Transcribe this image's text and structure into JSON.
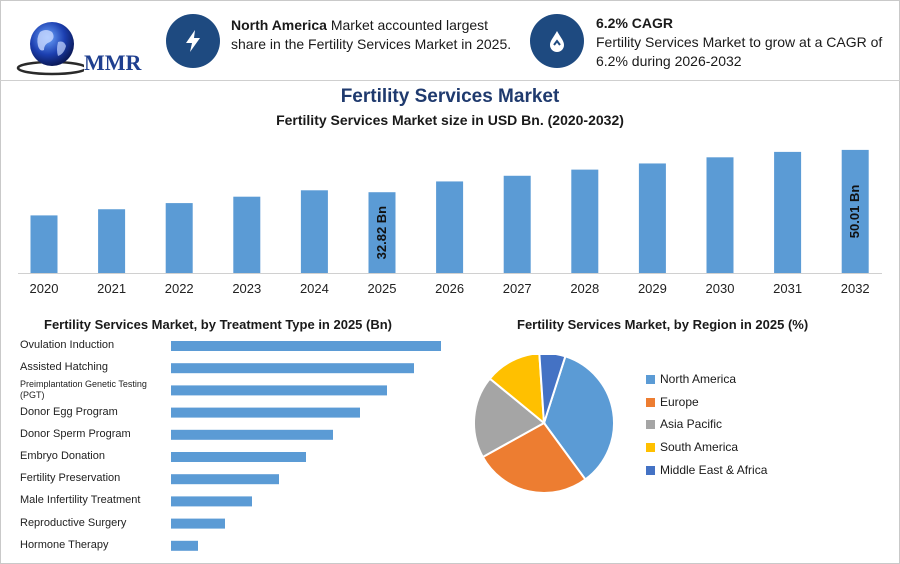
{
  "header": {
    "logo_text": "MMR",
    "info1": {
      "bold": "North America",
      "text": " Market accounted largest share in the Fertility Services Market in 2025."
    },
    "info2": {
      "bold": "6.2% CAGR",
      "text": "Fertility Services Market to grow at a CAGR of 6.2% during 2026-2032"
    }
  },
  "titles": {
    "main": "Fertility Services Market",
    "sub": "Fertility Services Market size in USD Bn. (2020-2032)",
    "treatment": "Fertility Services Market, by Treatment Type in 2025 (Bn)",
    "region": "Fertility Services Market, by Region in 2025 (%)"
  },
  "colors": {
    "bar": "#5b9bd5",
    "title": "#1f3a6e",
    "icon_bg": "#1e4a80"
  },
  "chart_data": [
    {
      "type": "bar",
      "title": "Fertility Services Market size in USD Bn. (2020-2032)",
      "categories": [
        "2020",
        "2021",
        "2022",
        "2023",
        "2024",
        "2025",
        "2026",
        "2027",
        "2028",
        "2029",
        "2030",
        "2031",
        "2032"
      ],
      "values": [
        23.4,
        25.9,
        28.4,
        31.0,
        33.6,
        32.82,
        37.2,
        39.5,
        42.0,
        44.5,
        47.0,
        49.2,
        50.01
      ],
      "data_labels": {
        "2025": "32.82 Bn",
        "2032": "50.01 Bn"
      },
      "ylim": [
        0,
        52
      ],
      "grid": false
    },
    {
      "type": "bar",
      "orientation": "horizontal",
      "title": "Fertility Services Market, by Treatment Type in 2025 (Bn)",
      "categories": [
        "Ovulation Induction",
        "Assisted Hatching",
        "Preimplantation Genetic Testing (PGT)",
        "Donor Egg Program",
        "Donor Sperm Program",
        "Embryo Donation",
        "Fertility Preservation",
        "Male Infertility Treatment",
        "Reproductive Surgery",
        "Hormone Therapy"
      ],
      "values": [
        10.0,
        9.0,
        8.0,
        7.0,
        6.0,
        5.0,
        4.0,
        3.0,
        2.0,
        1.0
      ],
      "xlim": [
        0,
        10
      ],
      "grid": false
    },
    {
      "type": "pie",
      "title": "Fertility Services Market, by Region in 2025 (%)",
      "labels": [
        "North America",
        "Europe",
        "Asia Pacific",
        "South America",
        "Middle East & Africa"
      ],
      "values": [
        35,
        27,
        19,
        13,
        6
      ],
      "colors": [
        "#5b9bd5",
        "#ed7d31",
        "#a5a5a5",
        "#ffc000",
        "#4472c4"
      ],
      "legend": "right"
    }
  ]
}
